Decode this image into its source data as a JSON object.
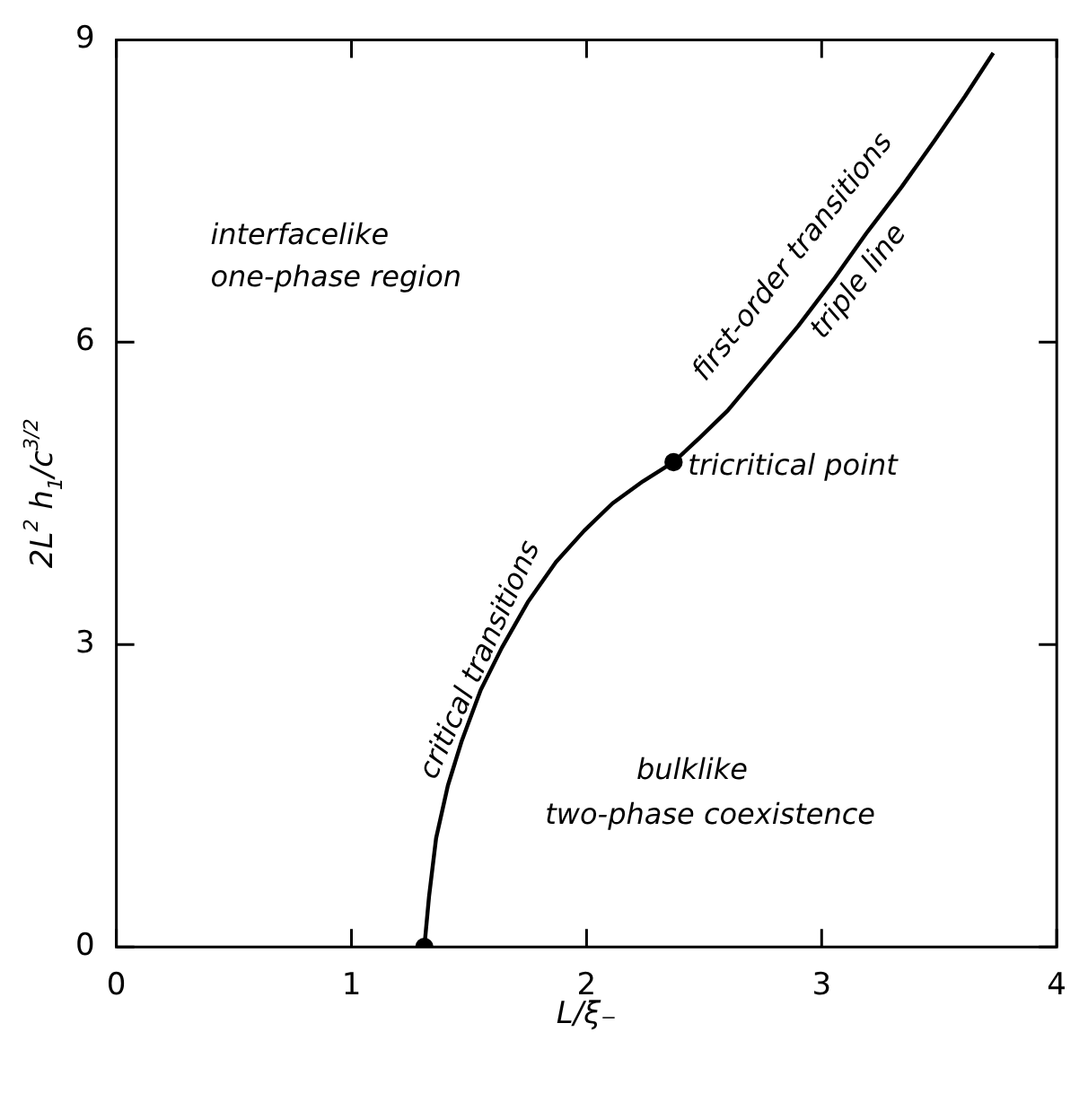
{
  "chart_data": {
    "type": "line",
    "xlabel": "L/ξ₋",
    "ylabel": "2L$^{2}$ h$_{1}$/c$^{3/2}$",
    "xlim": [
      0,
      4
    ],
    "ylim": [
      0,
      9
    ],
    "xticks": [
      0,
      1,
      2,
      3,
      4
    ],
    "yticks": [
      0,
      3,
      6,
      9
    ],
    "series": [
      {
        "color": "#000000",
        "marker": "none",
        "x": [
          1.31,
          1.33,
          1.36,
          1.41,
          1.47,
          1.55,
          1.64,
          1.75,
          1.87,
          1.99,
          2.11,
          2.24,
          2.37,
          2.48,
          2.6,
          2.75,
          2.9,
          3.05,
          3.19,
          3.34,
          3.48,
          3.61,
          3.73
        ],
        "values": [
          0,
          0.5,
          1.08,
          1.6,
          2.05,
          2.55,
          2.97,
          3.42,
          3.82,
          4.13,
          4.4,
          4.62,
          4.81,
          5.05,
          5.32,
          5.74,
          6.16,
          6.62,
          7.08,
          7.54,
          8.0,
          8.44,
          8.87
        ]
      },
      {
        "type": "scatter",
        "color": "#000000",
        "marker": "circle",
        "x": [
          1.31,
          2.37
        ],
        "values": [
          0,
          4.81
        ]
      }
    ],
    "annotations": [
      "critical transitions",
      "first-order transitions",
      "triple line",
      {
        "text": "tricritical point",
        "x": 2.37,
        "y": 4.81
      },
      "interfacelike",
      "one-phase region",
      "bulklike",
      "two-phase coexistence"
    ]
  }
}
